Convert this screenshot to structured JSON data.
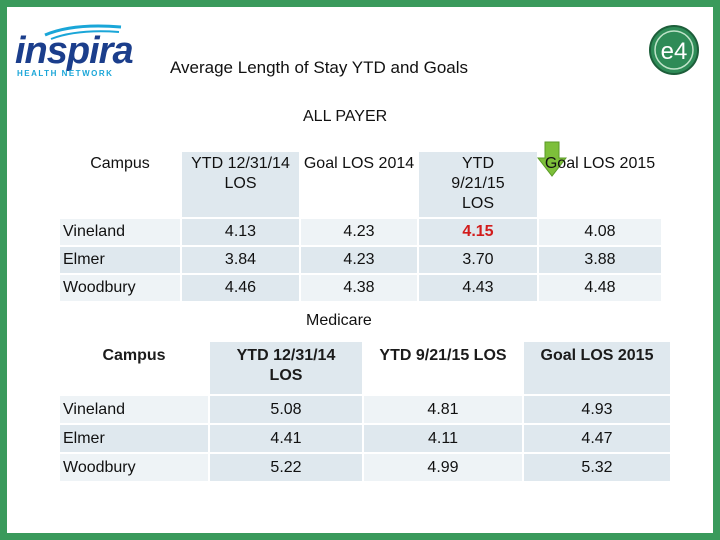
{
  "logo": {
    "name": "inspira",
    "subtitle": "HEALTH NETWORK"
  },
  "badge": {
    "text": "e4"
  },
  "title": "Average Length of Stay YTD and Goals",
  "all_payer": {
    "heading": "ALL PAYER",
    "headers": [
      "Campus",
      "YTD 12/31/14 LOS",
      "Goal LOS 2014",
      "YTD 9/21/15 LOS",
      "Goal LOS 2015"
    ],
    "rows": [
      {
        "campus": "Vineland",
        "ytd14": "4.13",
        "goal14": "4.23",
        "ytd15": "4.15",
        "goal15": "4.08"
      },
      {
        "campus": "Elmer",
        "ytd14": "3.84",
        "goal14": "4.23",
        "ytd15": "3.70",
        "goal15": "3.88"
      },
      {
        "campus": "Woodbury",
        "ytd14": "4.46",
        "goal14": "4.38",
        "ytd15": "4.43",
        "goal15": "4.48"
      }
    ],
    "highlight_color": "#d21b1b"
  },
  "medicare": {
    "heading": "Medicare",
    "headers": [
      "Campus",
      "YTD 12/31/14 LOS",
      "YTD 9/21/15 LOS",
      "Goal LOS 2015"
    ],
    "rows": [
      {
        "campus": "Vineland",
        "ytd14": "5.08",
        "ytd15": "4.81",
        "goal15": "4.93"
      },
      {
        "campus": "Elmer",
        "ytd14": "4.41",
        "ytd15": "4.11",
        "goal15": "4.47"
      },
      {
        "campus": "Woodbury",
        "ytd14": "5.22",
        "ytd15": "4.99",
        "goal15": "5.32"
      }
    ]
  },
  "colors": {
    "frame": "#3a9a5c",
    "shade": "#dfe8ee",
    "arrow": "#7dbf3a"
  }
}
